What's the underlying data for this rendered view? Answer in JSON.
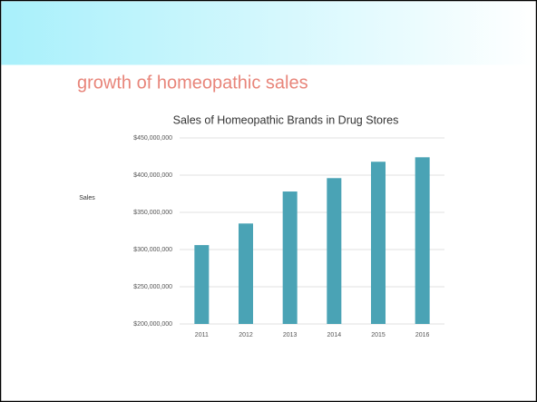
{
  "slide_title": "growth of homeopathic sales",
  "chart_data": {
    "type": "bar",
    "title": "Sales of Homeopathic Brands in Drug Stores",
    "y_label": "Sales",
    "categories": [
      "2011",
      "2012",
      "2013",
      "2014",
      "2015",
      "2016"
    ],
    "values": [
      306000000,
      335000000,
      378000000,
      396000000,
      418000000,
      424000000
    ],
    "color": "#4aa3b5",
    "ylim": [
      200000000,
      450000000
    ],
    "yticks": [
      {
        "value": 200000000,
        "label": "$200,000,000"
      },
      {
        "value": 250000000,
        "label": "$250,000,000"
      },
      {
        "value": 300000000,
        "label": "$300,000,000"
      },
      {
        "value": 350000000,
        "label": "$350,000,000"
      },
      {
        "value": 400000000,
        "label": "$400,000,000"
      },
      {
        "value": 450000000,
        "label": "$450,000,000"
      }
    ],
    "grid": true
  }
}
